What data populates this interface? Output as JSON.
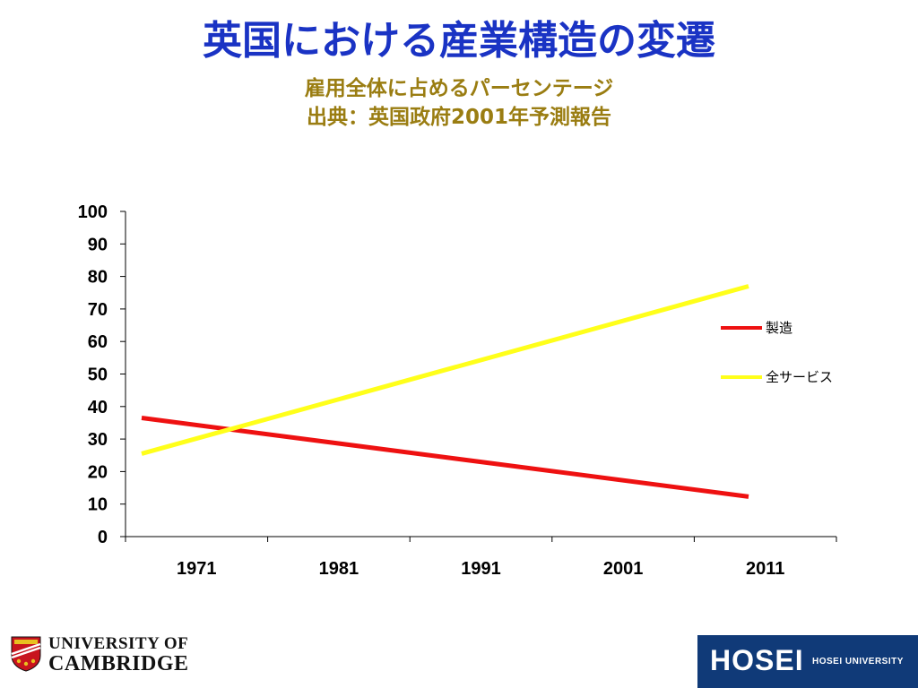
{
  "slide": {
    "title": "英国における産業構造の変遷",
    "subtitle_line1": "雇用全体に占めるパーセンテージ",
    "subtitle_line2": "出典：英国政府2001年予測報告"
  },
  "chart_data": {
    "type": "line",
    "title": "",
    "xlabel": "",
    "ylabel": "",
    "categories": [
      "1971",
      "1981",
      "1991",
      "2001",
      "2011"
    ],
    "ylim": [
      0,
      100
    ],
    "y_ticks": [
      0,
      10,
      20,
      30,
      40,
      50,
      60,
      70,
      80,
      90,
      100
    ],
    "series": [
      {
        "name": "製造",
        "color": "#ee1111",
        "values": [
          36.5,
          30.2,
          24.2,
          18.2,
          12.3
        ]
      },
      {
        "name": "全サービス",
        "color": "#ffff1a",
        "values": [
          25.5,
          38.8,
          51.5,
          64.2,
          77
        ]
      }
    ],
    "legend_position": "right",
    "grid": false
  },
  "logos": {
    "left_line1": "UNIVERSITY OF",
    "left_line2": "CAMBRIDGE",
    "right_logo": "HOSEI",
    "right_name": "HOSEI UNIVERSITY"
  }
}
